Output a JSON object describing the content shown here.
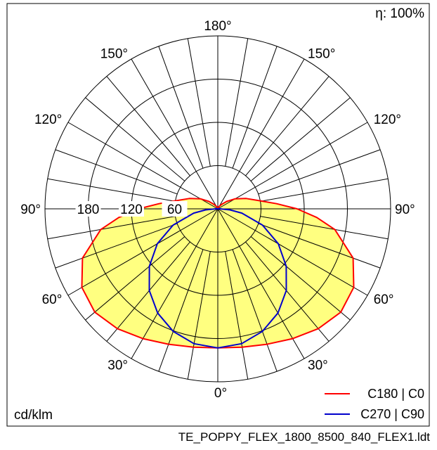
{
  "chart_data": {
    "type": "polar",
    "title": "",
    "efficiency_label": "η: 100%",
    "unit_label": "cd/klm",
    "radial_ticks": [
      60,
      120,
      180
    ],
    "radial_max": 240,
    "angle_labels": [
      {
        "text": "180°",
        "angle": 180,
        "side": "top"
      },
      {
        "text": "150°",
        "angle": 150,
        "side": "left"
      },
      {
        "text": "150°",
        "angle": 150,
        "side": "right"
      },
      {
        "text": "120°",
        "angle": 120,
        "side": "left"
      },
      {
        "text": "120°",
        "angle": 120,
        "side": "right"
      },
      {
        "text": "90°",
        "angle": 90,
        "side": "left"
      },
      {
        "text": "90°",
        "angle": 90,
        "side": "right"
      },
      {
        "text": "60°",
        "angle": 60,
        "side": "left"
      },
      {
        "text": "60°",
        "angle": 60,
        "side": "right"
      },
      {
        "text": "30°",
        "angle": 30,
        "side": "left"
      },
      {
        "text": "30°",
        "angle": 30,
        "side": "right"
      },
      {
        "text": "0°",
        "angle": 0,
        "side": "bottom"
      }
    ],
    "series": [
      {
        "name": "C180 | C0",
        "color": "#ff0000",
        "fill": "#ffff80",
        "angles": [
          0,
          10,
          20,
          30,
          40,
          50,
          60,
          70,
          80,
          85,
          90,
          95,
          100,
          110,
          120,
          130,
          140,
          150,
          160,
          170,
          180
        ],
        "values": [
          193,
          195,
          200,
          208,
          217,
          223,
          218,
          200,
          165,
          138,
          110,
          82,
          62,
          42,
          28,
          16,
          8,
          4,
          2,
          1,
          0
        ]
      },
      {
        "name": "C270 | C90",
        "color": "#0000cc",
        "angles": [
          0,
          10,
          20,
          30,
          40,
          50,
          60,
          70,
          80,
          85,
          90,
          95,
          100,
          110,
          120,
          130,
          140,
          150,
          160,
          170,
          180
        ],
        "values": [
          193,
          190,
          181,
          167,
          148,
          124,
          97,
          66,
          34,
          17,
          3,
          1,
          0,
          0,
          0,
          0,
          0,
          0,
          0,
          0,
          0
        ]
      }
    ]
  },
  "footer": {
    "filename": "TE_POPPY_FLEX_1800_8500_840_FLEX1.ldt"
  }
}
